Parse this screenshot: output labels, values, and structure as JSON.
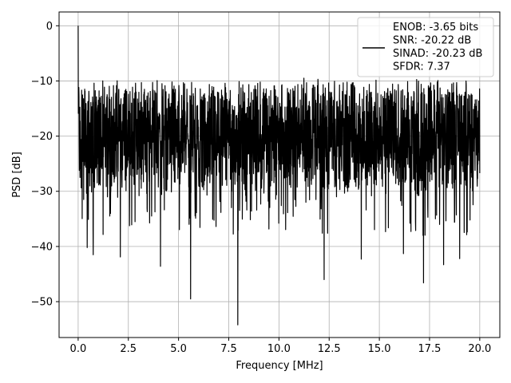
{
  "chart_data": {
    "type": "line",
    "title": "",
    "xlabel": "Frequency [MHz]",
    "ylabel": "PSD [dB]",
    "xlim": [
      -0.95,
      21.0
    ],
    "ylim": [
      -56.5,
      2.5
    ],
    "xticks": [
      0.0,
      2.5,
      5.0,
      7.5,
      10.0,
      12.5,
      15.0,
      17.5,
      20.0
    ],
    "xtick_labels": [
      "0.0",
      "2.5",
      "5.0",
      "7.5",
      "10.0",
      "12.5",
      "15.0",
      "17.5",
      "20.0"
    ],
    "yticks": [
      0,
      -10,
      -20,
      -30,
      -40,
      -50
    ],
    "ytick_labels": [
      "0",
      "−10",
      "−20",
      "−30",
      "−40",
      "−50"
    ],
    "grid": true,
    "legend_position": "top-right",
    "line_color": "#000000",
    "series": [
      {
        "name": "ENOB: -3.65 bits\nSNR: -20.22 dB\nSINAD: -20.23 dB\nSFDR: 7.37",
        "x_range": [
          0.0,
          20.0
        ],
        "noise_floor_db": -20.2,
        "peak": {
          "x": 0.0,
          "y": 0.0
        },
        "notable_dips": [
          {
            "x": 0.45,
            "y": -40.2
          },
          {
            "x": 0.75,
            "y": -41.5
          },
          {
            "x": 2.1,
            "y": -41.9
          },
          {
            "x": 4.1,
            "y": -43.6
          },
          {
            "x": 5.6,
            "y": -49.5
          },
          {
            "x": 7.95,
            "y": -54.2
          },
          {
            "x": 12.25,
            "y": -46.0
          },
          {
            "x": 14.1,
            "y": -42.3
          },
          {
            "x": 16.2,
            "y": -41.3
          },
          {
            "x": 17.2,
            "y": -46.6
          },
          {
            "x": 18.2,
            "y": -43.3
          },
          {
            "x": 19.0,
            "y": -42.2
          }
        ]
      }
    ],
    "legend_lines": [
      "ENOB: -3.65 bits",
      "SNR: -20.22 dB",
      "SINAD: -20.23 dB",
      "SFDR: 7.37"
    ]
  }
}
